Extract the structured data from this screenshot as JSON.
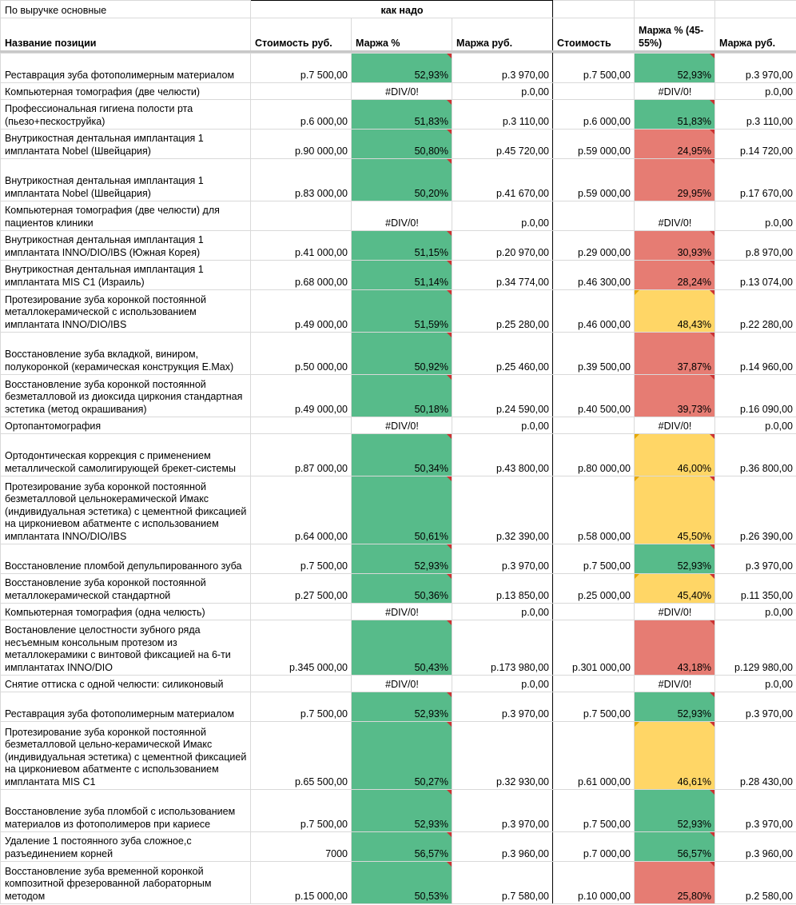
{
  "sheet": {
    "title": "По выручке основные",
    "group_label": "как надо",
    "headers": {
      "name": "Название позиции",
      "cost1": "Стоимость руб.",
      "margin_pct1": "Маржа %",
      "margin_rub1": "Маржа руб.",
      "cost2": "Стоимость",
      "margin_pct2": "Маржа % (45-55%)",
      "margin_rub2": "Маржа руб."
    },
    "colors": {
      "green": "#57bb8a",
      "red": "#e67c73",
      "yellow": "#ffd666",
      "comment_marker": "#cc3333"
    },
    "rows": [
      {
        "name": "Реставрация зуба фотополимерным материалом",
        "cost1": "р.7 500,00",
        "m1": "52,93%",
        "r1": "р.3 970,00",
        "cost2": "р.7 500,00",
        "m2": "52,93%",
        "r2": "р.3 970,00",
        "c1": "green",
        "c2": "green",
        "h": 37
      },
      {
        "name": "Компьютерная томография (две челюсти)",
        "cost1": "",
        "m1": "#DIV/0!",
        "r1": "р.0,00",
        "cost2": "",
        "m2": "#DIV/0!",
        "r2": "р.0,00",
        "c1": "",
        "c2": "",
        "h": 21
      },
      {
        "name": "Профессиональная гигиена полости рта (пьезо+пескоструйка)",
        "cost1": "р.6 000,00",
        "m1": "51,83%",
        "r1": "р.3 110,00",
        "cost2": "р.6 000,00",
        "m2": "51,83%",
        "r2": "р.3 110,00",
        "c1": "green",
        "c2": "green",
        "h": 37
      },
      {
        "name": "Внутрикостная дентальная имплантация 1 имплантата Nobel (Швейцария)",
        "cost1": "р.90 000,00",
        "m1": "50,80%",
        "r1": "р.45 720,00",
        "cost2": "р.59 000,00",
        "m2": "24,95%",
        "r2": "р.14 720,00",
        "c1": "green",
        "c2": "red",
        "h": 37
      },
      {
        "name": "Внутрикостная дентальная имплантация 1 имплантата Nobel (Швейцария)",
        "cost1": "р.83 000,00",
        "m1": "50,20%",
        "r1": "р.41 670,00",
        "cost2": "р.59 000,00",
        "m2": "29,95%",
        "r2": "р.17 670,00",
        "c1": "green",
        "c2": "red",
        "h": 53
      },
      {
        "name": "Компьютерная томография (две челюсти) для пациентов клиники",
        "cost1": "",
        "m1": "#DIV/0!",
        "r1": "р.0,00",
        "cost2": "",
        "m2": "#DIV/0!",
        "r2": "р.0,00",
        "c1": "",
        "c2": "",
        "h": 37
      },
      {
        "name": "Внутрикостная дентальная имплантация 1 имплантата INNO/DIO/IBS (Южная Корея)",
        "cost1": "р.41 000,00",
        "m1": "51,15%",
        "r1": "р.20 970,00",
        "cost2": "р.29 000,00",
        "m2": "30,93%",
        "r2": "р.8 970,00",
        "c1": "green",
        "c2": "red",
        "h": 37
      },
      {
        "name": "Внутрикостная дентальная имплантация 1 имплантата MIS C1 (Израиль)",
        "cost1": "р.68 000,00",
        "m1": "51,14%",
        "r1": "р.34 774,00",
        "cost2": "р.46 300,00",
        "m2": "28,24%",
        "r2": "р.13 074,00",
        "c1": "green",
        "c2": "red",
        "h": 37
      },
      {
        "name": "Протезирование зуба коронкой постоянной металлокерамической с использованием имплантата INNO/DIO/IBS",
        "cost1": "р.49 000,00",
        "m1": "51,59%",
        "r1": "р.25 280,00",
        "cost2": "р.46 000,00",
        "m2": "48,43%",
        "r2": "р.22 280,00",
        "c1": "green",
        "c2": "yellow",
        "h": 53
      },
      {
        "name": "Восстановление зуба вкладкой, виниром, полукоронкой (керамическая конструкция E.Max)",
        "cost1": "р.50 000,00",
        "m1": "50,92%",
        "r1": "р.25 460,00",
        "cost2": "р.39 500,00",
        "m2": "37,87%",
        "r2": "р.14 960,00",
        "c1": "green",
        "c2": "red",
        "h": 53
      },
      {
        "name": "Восстановление зуба коронкой постоянной безметалловой из диоксида циркония стандартная эстетика (метод окрашивания)",
        "cost1": "р.49 000,00",
        "m1": "50,18%",
        "r1": "р.24 590,00",
        "cost2": "р.40 500,00",
        "m2": "39,73%",
        "r2": "р.16 090,00",
        "c1": "green",
        "c2": "red",
        "h": 53
      },
      {
        "name": "Ортопантомография",
        "cost1": "",
        "m1": "#DIV/0!",
        "r1": "р.0,00",
        "cost2": "",
        "m2": "#DIV/0!",
        "r2": "р.0,00",
        "c1": "",
        "c2": "",
        "h": 21
      },
      {
        "name": "Ортодонтическая коррекция с применением металлической самолигирующей брекет-системы",
        "cost1": "р.87 000,00",
        "m1": "50,34%",
        "r1": "р.43 800,00",
        "cost2": "р.80 000,00",
        "m2": "46,00%",
        "r2": "р.36 800,00",
        "c1": "green",
        "c2": "yellow",
        "h": 53
      },
      {
        "name": "Протезирование зуба коронкой постоянной безметалловой цельнокерамической Имакс (индивидуальная эстетика) с цементной фиксацией на циркониевом абатменте с использованием имплантата INNO/DIO/IBS",
        "cost1": "р.64 000,00",
        "m1": "50,61%",
        "r1": "р.32 390,00",
        "cost2": "р.58 000,00",
        "m2": "45,50%",
        "r2": "р.26 390,00",
        "c1": "green",
        "c2": "yellow",
        "h": 85
      },
      {
        "name": "Восстановление пломбой депульпированного зуба",
        "cost1": "р.7 500,00",
        "m1": "52,93%",
        "r1": "р.3 970,00",
        "cost2": "р.7 500,00",
        "m2": "52,93%",
        "r2": "р.3 970,00",
        "c1": "green",
        "c2": "green",
        "h": 37
      },
      {
        "name": "Восстановление зуба коронкой постоянной металлокерамической стандартной",
        "cost1": "р.27 500,00",
        "m1": "50,36%",
        "r1": "р.13 850,00",
        "cost2": "р.25 000,00",
        "m2": "45,40%",
        "r2": "р.11 350,00",
        "c1": "green",
        "c2": "yellow",
        "h": 37
      },
      {
        "name": "Компьютерная томография (одна челюсть)",
        "cost1": "",
        "m1": "#DIV/0!",
        "r1": "р.0,00",
        "cost2": "",
        "m2": "#DIV/0!",
        "r2": "р.0,00",
        "c1": "",
        "c2": "",
        "h": 21
      },
      {
        "name": "Востановление целостности зубного ряда несъемным консольным протезом из металлокерамики с винтовой фиксацией на 6-ти имплантатах INNO/DIO",
        "cost1": "р.345 000,00",
        "m1": "50,43%",
        "r1": "р.173 980,00",
        "cost2": "р.301 000,00",
        "m2": "43,18%",
        "r2": "р.129 980,00",
        "c1": "green",
        "c2": "red",
        "h": 69
      },
      {
        "name": "Снятие оттиска с одной челюсти: силиконовый",
        "cost1": "",
        "m1": "#DIV/0!",
        "r1": "р.0,00",
        "cost2": "",
        "m2": "#DIV/0!",
        "r2": "р.0,00",
        "c1": "",
        "c2": "",
        "h": 21
      },
      {
        "name": "Реставрация зуба фотополимерным материалом",
        "cost1": "р.7 500,00",
        "m1": "52,93%",
        "r1": "р.3 970,00",
        "cost2": "р.7 500,00",
        "m2": "52,93%",
        "r2": "р.3 970,00",
        "c1": "green",
        "c2": "green",
        "h": 37
      },
      {
        "name": "Протезирование зуба коронкой постоянной безметалловой цельно-керамической Имакс (индивидуальная эстетика) с цементной фиксацией на циркониевом абатменте с использованием имплантата MIS C1",
        "cost1": "р.65 500,00",
        "m1": "50,27%",
        "r1": "р.32 930,00",
        "cost2": "р.61 000,00",
        "m2": "46,61%",
        "r2": "р.28 430,00",
        "c1": "green",
        "c2": "yellow",
        "h": 85
      },
      {
        "name": "Восстановление зуба пломбой с использованием материалов из фотополимеров при кариесе",
        "cost1": "р.7 500,00",
        "m1": "52,93%",
        "r1": "р.3 970,00",
        "cost2": "р.7 500,00",
        "m2": "52,93%",
        "r2": "р.3 970,00",
        "c1": "green",
        "c2": "green",
        "h": 53
      },
      {
        "name": "Удаление 1 постоянного зуба сложное,с разъединением корней",
        "cost1": "7000",
        "m1": "56,57%",
        "r1": "р.3 960,00",
        "cost2": "р.7 000,00",
        "m2": "56,57%",
        "r2": "р.3 960,00",
        "c1": "green",
        "c2": "green",
        "h": 37
      },
      {
        "name": "Восстановление зуба временной коронкой композитной фрезерованной лабораторным методом",
        "cost1": "р.15 000,00",
        "m1": "50,53%",
        "r1": "р.7 580,00",
        "cost2": "р.10 000,00",
        "m2": "25,80%",
        "r2": "р.2 580,00",
        "c1": "green",
        "c2": "red",
        "h": 53
      }
    ]
  }
}
